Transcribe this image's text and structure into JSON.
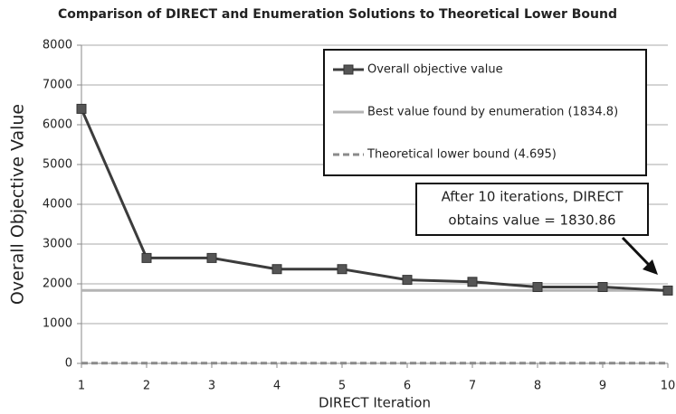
{
  "chart_data": {
    "type": "line",
    "title": "Comparison of DIRECT and Enumeration Solutions to Theoretical Lower Bound",
    "x_label": "DIRECT Iteration",
    "y_label": "Overall Objective Value",
    "x": [
      1,
      2,
      3,
      4,
      5,
      6,
      7,
      8,
      9,
      10
    ],
    "xlim": [
      1,
      10
    ],
    "xticks": [
      1,
      2,
      3,
      4,
      5,
      6,
      7,
      8,
      9,
      10
    ],
    "ylim": [
      0,
      8000
    ],
    "yticks": [
      0,
      1000,
      2000,
      3000,
      4000,
      5000,
      6000,
      7000,
      8000
    ],
    "grid": true,
    "legend": "upper right",
    "series": [
      {
        "name": "Overall objective value",
        "color": "#3c3c3c",
        "style": "solid",
        "marker": "square",
        "values": [
          6400,
          2650,
          2650,
          2370,
          2370,
          2100,
          2050,
          1920,
          1920,
          1830.86
        ]
      },
      {
        "name": "Best value found by enumeration (1834.8)",
        "color": "#b4b4b4",
        "style": "solid",
        "values": [
          1834.8,
          1834.8,
          1834.8,
          1834.8,
          1834.8,
          1834.8,
          1834.8,
          1834.8,
          1834.8,
          1834.8
        ]
      },
      {
        "name": "Theoretical lower bound (4.695)",
        "color": "#8a8a8a",
        "style": "dashed",
        "values": [
          4.695,
          4.695,
          4.695,
          4.695,
          4.695,
          4.695,
          4.695,
          4.695,
          4.695,
          4.695
        ]
      }
    ],
    "annotation": [
      "After 10 iterations, DIRECT",
      "obtains value = 1830.86"
    ]
  }
}
